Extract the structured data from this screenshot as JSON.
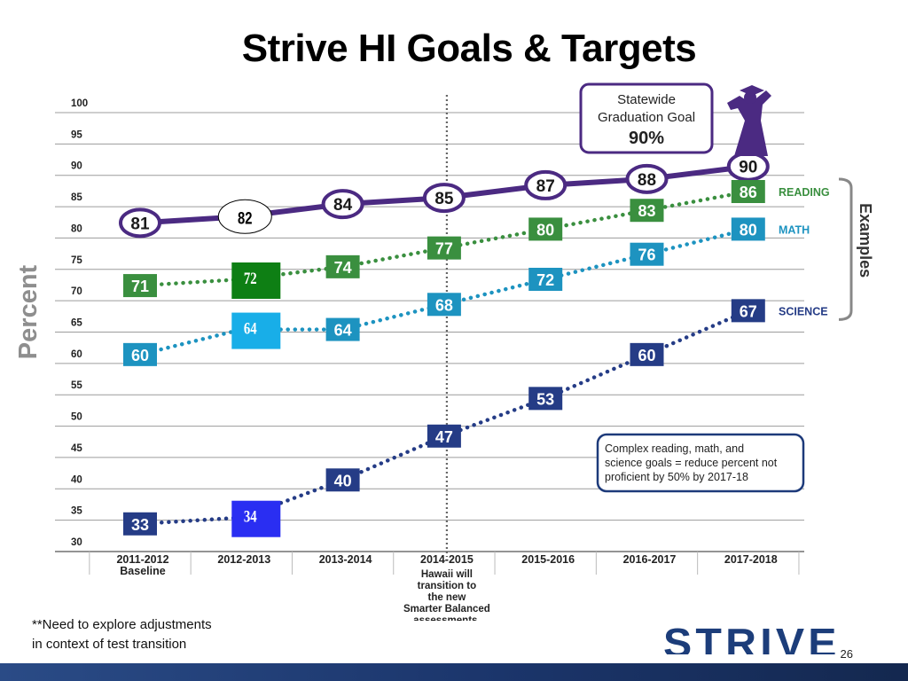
{
  "slide": {
    "title": "Strive HI Goals & Targets",
    "footnote_line1": "**Need to explore adjustments",
    "footnote_line2": "in context of test transition",
    "page_number": "26",
    "logo_text": "STRIVE HI"
  },
  "colors": {
    "graduation": "#4b2a82",
    "reading": "#3a8f3f",
    "math": "#1d93c0",
    "science": "#253c86",
    "reading_highlight": "#0e7f14",
    "math_highlight": "#18aee8",
    "science_highlight": "#2a2ef2",
    "grid": "#9c9c9c",
    "tick_text": "#222222"
  },
  "chart_data": {
    "type": "line",
    "ylabel": "Percent",
    "ylim": [
      30,
      100
    ],
    "yticks": [
      30,
      35,
      40,
      45,
      50,
      55,
      60,
      65,
      70,
      75,
      80,
      85,
      90,
      95,
      100
    ],
    "grid": true,
    "categories": [
      "2011-2012",
      "2012-2013",
      "2013-2014",
      "2014-2015",
      "2015-2016",
      "2016-2017",
      "2017-2018"
    ],
    "category_sublabels": [
      "Baseline",
      "",
      "",
      "",
      "",
      "",
      ""
    ],
    "series": [
      {
        "key": "graduation",
        "values": [
          81,
          82,
          84,
          85,
          87,
          88,
          90
        ],
        "marker": "oval"
      },
      {
        "key": "reading",
        "name": "READING",
        "values": [
          71,
          72,
          74,
          77,
          80,
          83,
          86
        ],
        "marker": "square"
      },
      {
        "key": "math",
        "name": "MATH",
        "values": [
          60,
          64,
          64,
          68,
          72,
          76,
          80
        ],
        "marker": "square"
      },
      {
        "key": "science",
        "name": "SCIENCE",
        "values": [
          33,
          34,
          40,
          47,
          53,
          60,
          67
        ],
        "marker": "square"
      }
    ],
    "highlighted_points": {
      "graduation": 1,
      "reading": 1,
      "math": 1,
      "science": 1
    },
    "transition_marker": {
      "after_category": "2014-2015",
      "label_lines": [
        "Hawaii will",
        "transition to",
        "the new",
        "Smarter Balanced",
        "assessments."
      ]
    },
    "goal_callout": {
      "lines": [
        "Statewide",
        "Graduation Goal",
        "90%"
      ]
    },
    "note_callout": {
      "lines": [
        "Complex reading, math, and",
        "science goals = reduce percent not",
        "proficient by 50% by 2017-18"
      ]
    },
    "bracket_label": "Examples"
  }
}
